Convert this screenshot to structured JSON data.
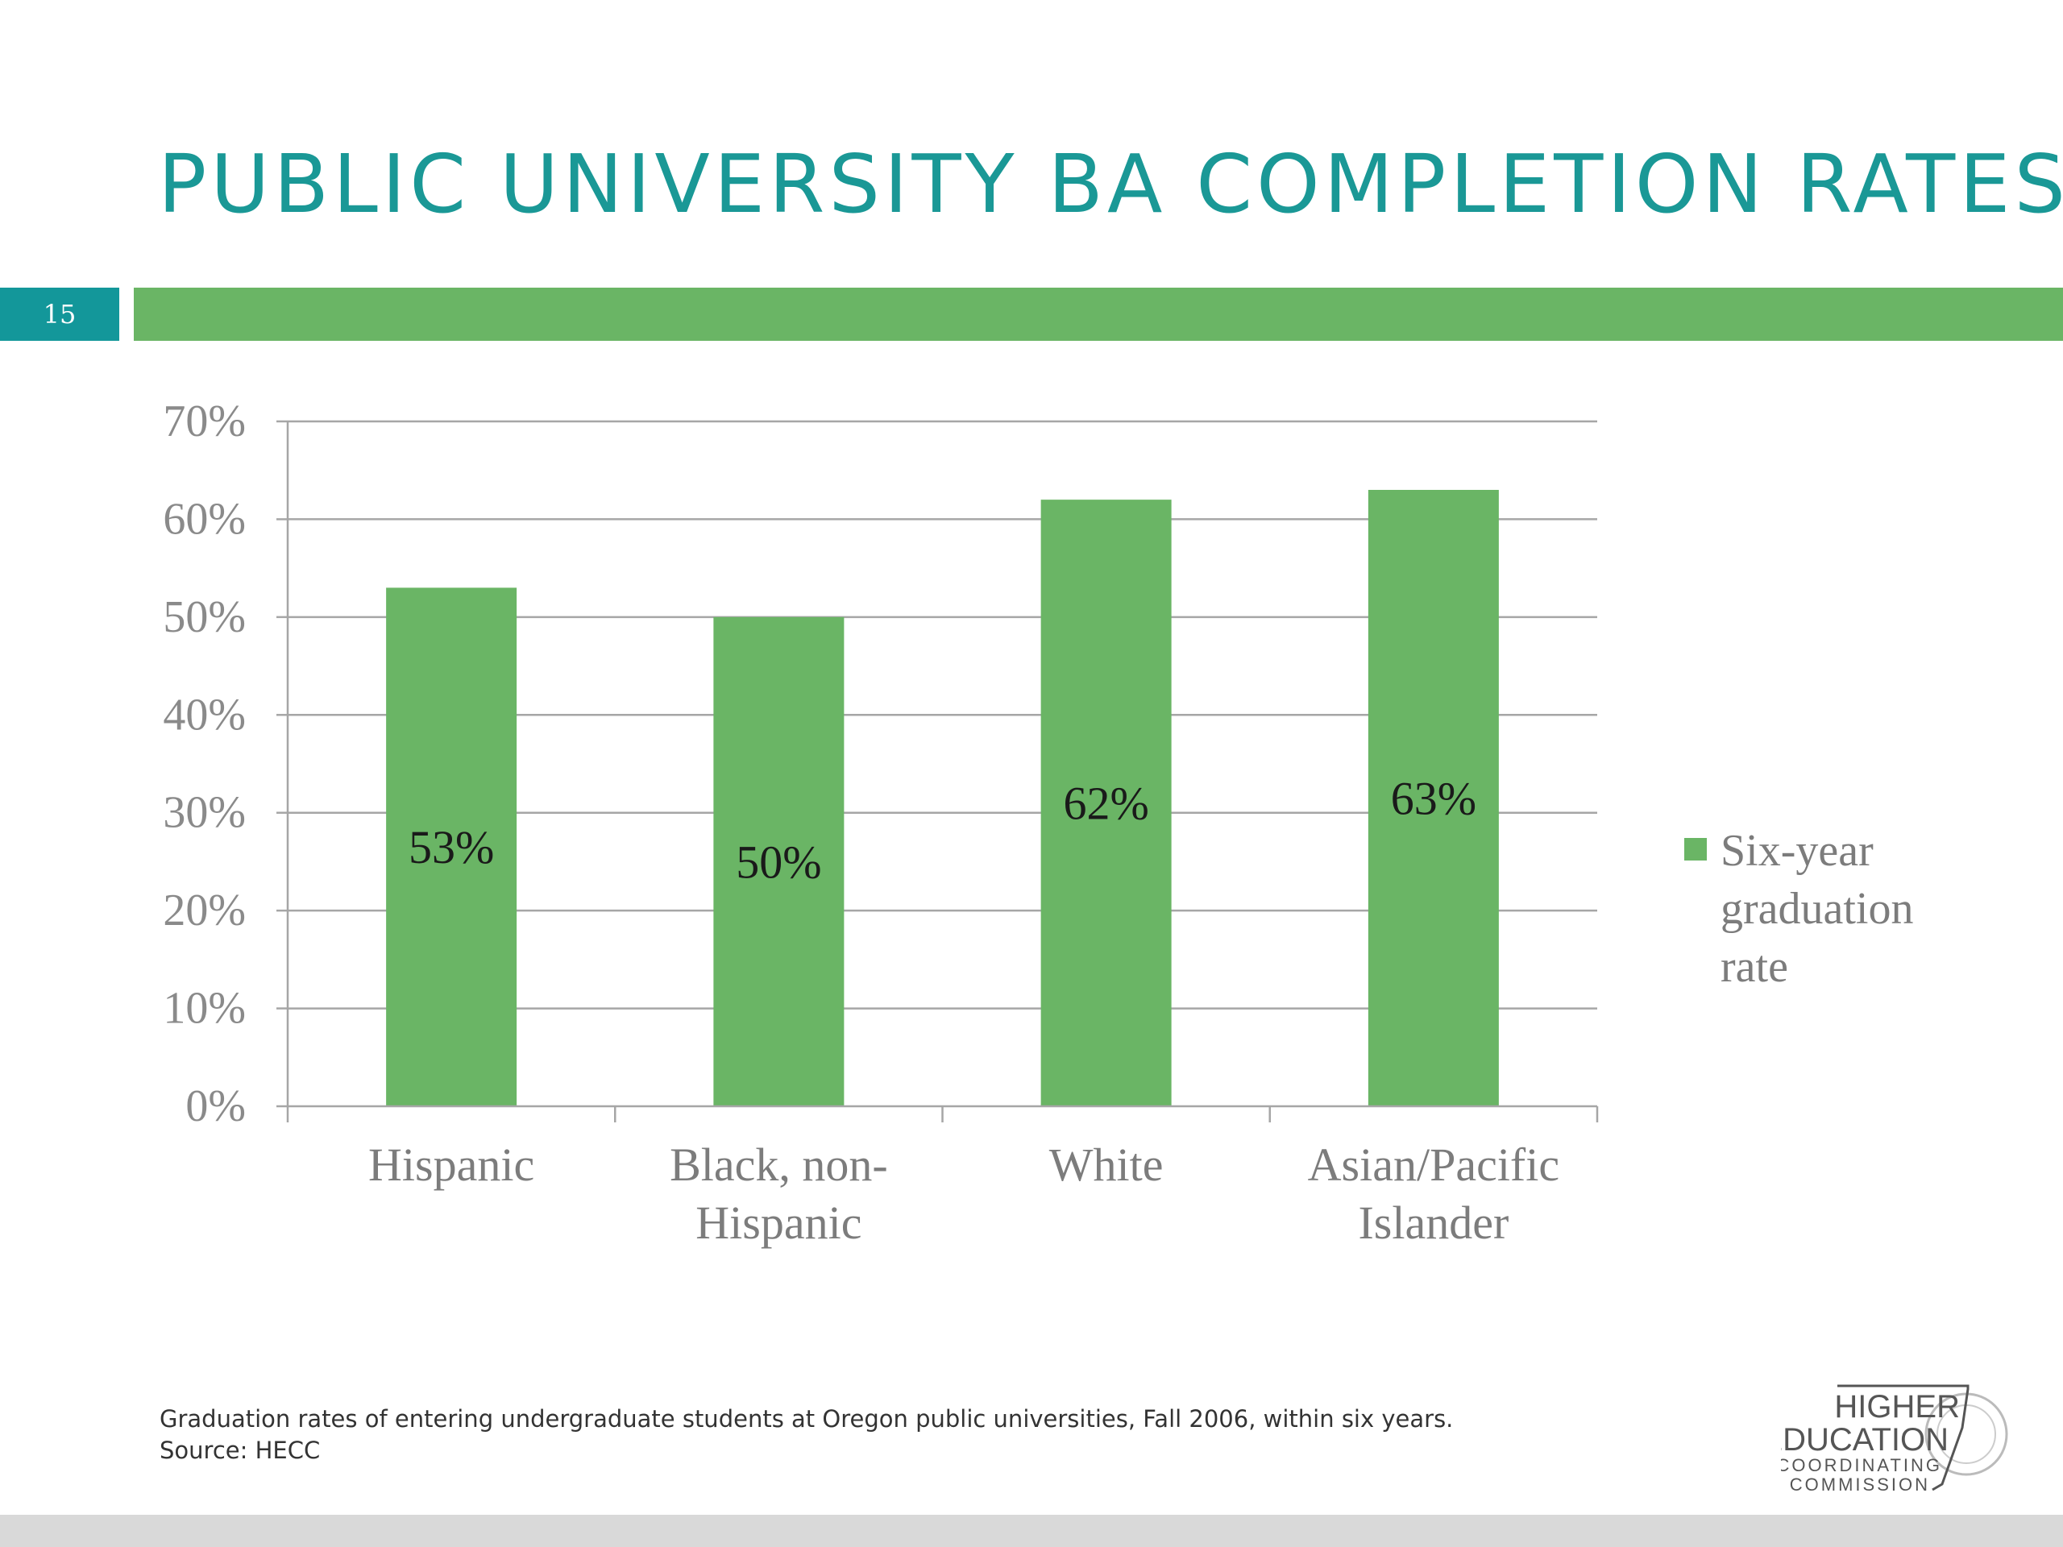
{
  "slide": {
    "title": "PUBLIC UNIVERSITY BA COMPLETION RATES",
    "number": "15"
  },
  "colors": {
    "title": "#1a9896",
    "accent_bar": "#6ab565",
    "number_box": "#13979a",
    "bar": "#6ab565",
    "grid": "#a6a6a6"
  },
  "chart_data": {
    "type": "bar",
    "categories": [
      [
        "Hispanic"
      ],
      [
        "Black, non-",
        "Hispanic"
      ],
      [
        "White"
      ],
      [
        "Asian/Pacific",
        "Islander"
      ]
    ],
    "series": [
      {
        "name": "Six-year graduation rate",
        "name_lines": [
          "Six-year",
          "graduation",
          "rate"
        ],
        "values": [
          53,
          50,
          62,
          63
        ],
        "data_labels": [
          "53%",
          "50%",
          "62%",
          "63%"
        ]
      }
    ],
    "yticks": [
      "0%",
      "10%",
      "20%",
      "30%",
      "40%",
      "50%",
      "60%",
      "70%"
    ],
    "ylim": [
      0,
      70
    ],
    "grid": true,
    "legend_position": "right"
  },
  "footnote": {
    "line1": "Graduation rates of entering undergraduate students at Oregon public universities, Fall 2006, within six years.",
    "line2": "Source: HECC"
  },
  "logo": {
    "line1": "HIGHER",
    "line2": "EDUCATION",
    "line3": "COORDINATING",
    "line4": "COMMISSION"
  }
}
